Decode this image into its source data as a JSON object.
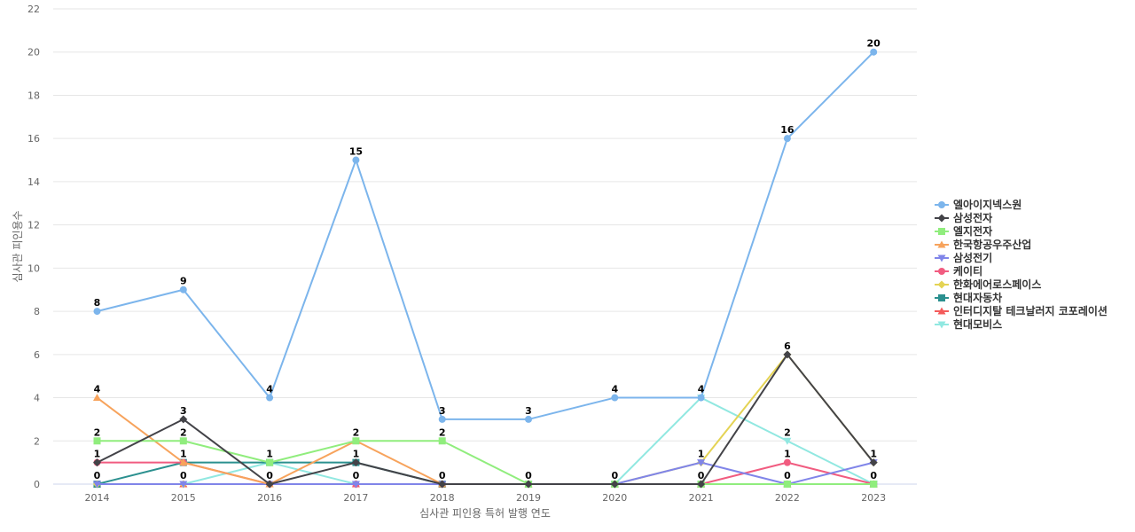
{
  "chart_data": {
    "type": "line",
    "xlabel": "심사관 피인용 특허 발행 연도",
    "ylabel": "심사관 피인용수",
    "x": [
      "2014",
      "2015",
      "2016",
      "2017",
      "2018",
      "2019",
      "2020",
      "2021",
      "2022",
      "2023"
    ],
    "ylim": [
      0,
      22
    ],
    "yticks": [
      0,
      2,
      4,
      6,
      8,
      10,
      12,
      14,
      16,
      18,
      20,
      22
    ],
    "grid": true,
    "legend_position": "right",
    "series": [
      {
        "name": "엘아이지넥스원",
        "color": "#7cb5ec",
        "marker": "circle",
        "values": [
          8,
          9,
          4,
          15,
          3,
          3,
          4,
          4,
          16,
          20
        ],
        "labeled": true
      },
      {
        "name": "삼성전자",
        "color": "#434348",
        "marker": "diamond",
        "values": [
          1,
          3,
          0,
          1,
          0,
          0,
          0,
          0,
          6,
          1
        ],
        "labeled": false
      },
      {
        "name": "엘지전자",
        "color": "#90ed7d",
        "marker": "square",
        "values": [
          2,
          2,
          1,
          2,
          2,
          0,
          0,
          0,
          0,
          0
        ],
        "labeled": false
      },
      {
        "name": "한국항공우주산업",
        "color": "#f7a35c",
        "marker": "triangle",
        "values": [
          4,
          1,
          0,
          2,
          0,
          0,
          0,
          0,
          0,
          0
        ],
        "labeled": false
      },
      {
        "name": "삼성전기",
        "color": "#8085e9",
        "marker": "triangle-down",
        "values": [
          0,
          0,
          0,
          0,
          0,
          0,
          0,
          1,
          0,
          1
        ],
        "labeled": false
      },
      {
        "name": "케이티",
        "color": "#f15c80",
        "marker": "circle",
        "values": [
          1,
          1,
          0,
          0,
          0,
          0,
          0,
          0,
          1,
          0
        ],
        "labeled": false
      },
      {
        "name": "한화에어로스페이스",
        "color": "#e4d354",
        "marker": "diamond",
        "values": [
          0,
          0,
          0,
          0,
          0,
          0,
          0,
          1,
          6,
          1
        ],
        "labeled": false
      },
      {
        "name": "현대자동차",
        "color": "#2b908f",
        "marker": "square",
        "values": [
          0,
          1,
          1,
          1,
          0,
          0,
          0,
          0,
          0,
          0
        ],
        "labeled": false
      },
      {
        "name": "인터디지탈 테크날러지 코포레이션",
        "color": "#f45b5b",
        "marker": "triangle",
        "values": [
          0,
          0,
          0,
          0,
          0,
          0,
          0,
          0,
          0,
          0
        ],
        "labeled": false
      },
      {
        "name": "현대모비스",
        "color": "#91e8e1",
        "marker": "triangle-down",
        "values": [
          0,
          0,
          1,
          0,
          0,
          0,
          0,
          4,
          2,
          0
        ],
        "labeled": false
      }
    ],
    "point_labels": [
      {
        "x": "2014",
        "values": [
          "8",
          "4",
          "2",
          "1",
          "0"
        ]
      },
      {
        "x": "2015",
        "values": [
          "9",
          "3",
          "2",
          "1",
          "0"
        ]
      },
      {
        "x": "2016",
        "values": [
          "4",
          "1",
          "0"
        ]
      },
      {
        "x": "2017",
        "values": [
          "15",
          "2",
          "1",
          "0"
        ]
      },
      {
        "x": "2018",
        "values": [
          "3",
          "2",
          "0"
        ]
      },
      {
        "x": "2019",
        "values": [
          "3",
          "0"
        ]
      },
      {
        "x": "2020",
        "values": [
          "4",
          "0"
        ]
      },
      {
        "x": "2021",
        "values": [
          "4",
          "1",
          "0"
        ]
      },
      {
        "x": "2022",
        "values": [
          "16",
          "6",
          "2",
          "1",
          "0"
        ]
      },
      {
        "x": "2023",
        "values": [
          "20",
          "1",
          "0"
        ]
      }
    ]
  }
}
